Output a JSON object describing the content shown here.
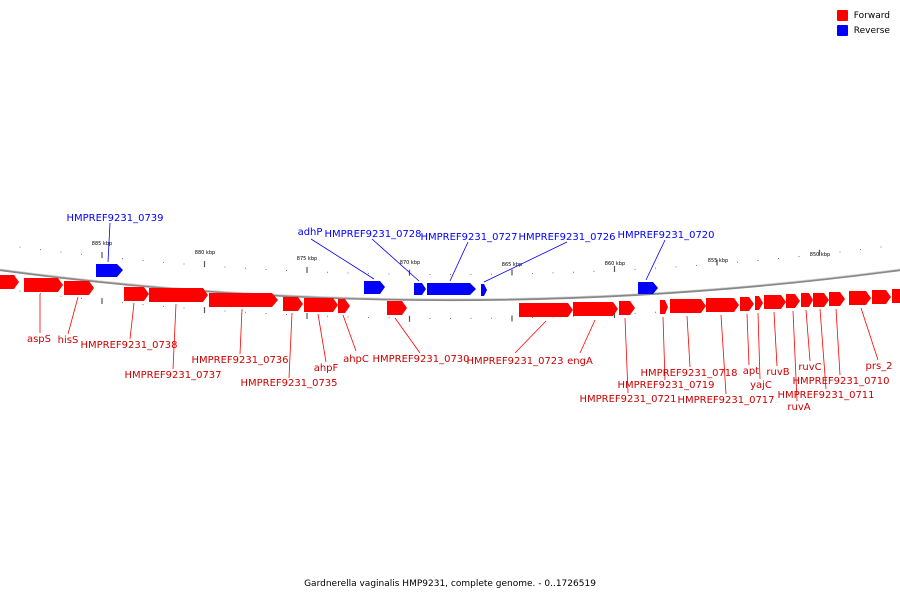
{
  "legend": {
    "items": [
      {
        "label": "Forward",
        "color": "#ff0000"
      },
      {
        "label": "Reverse",
        "color": "#0000ff"
      }
    ]
  },
  "caption": "Gardnerella vaginalis HMP9231, complete genome. - 0..1726519",
  "colors": {
    "forward": "#ff0000",
    "reverse": "#0000ff",
    "backbone": "#888888"
  },
  "scale_labels": [
    "885 kbp",
    "880 kbp",
    "875 kbp",
    "870 kbp",
    "865 kbp",
    "860 kbp",
    "855 kbp",
    "850 kbp"
  ],
  "reverse_genes": [
    {
      "name": "HMPREF9231_0739"
    },
    {
      "name": "adhP"
    },
    {
      "name": "HMPREF9231_0728"
    },
    {
      "name": "HMPREF9231_0727"
    },
    {
      "name": "HMPREF9231_0726"
    },
    {
      "name": "HMPREF9231_0720"
    }
  ],
  "forward_genes": [
    {
      "name": "aspS"
    },
    {
      "name": "hisS"
    },
    {
      "name": "HMPREF9231_0738"
    },
    {
      "name": "HMPREF9231_0737"
    },
    {
      "name": "HMPREF9231_0736"
    },
    {
      "name": "HMPREF9231_0735"
    },
    {
      "name": "ahpF"
    },
    {
      "name": "ahpC"
    },
    {
      "name": "HMPREF9231_0730"
    },
    {
      "name": "HMPREF9231_0723"
    },
    {
      "name": "engA"
    },
    {
      "name": "HMPREF9231_0721"
    },
    {
      "name": "HMPREF9231_0719"
    },
    {
      "name": "HMPREF9231_0718"
    },
    {
      "name": "HMPREF9231_0717"
    },
    {
      "name": "apt"
    },
    {
      "name": "yajC"
    },
    {
      "name": "ruvB"
    },
    {
      "name": "ruvA"
    },
    {
      "name": "ruvC"
    },
    {
      "name": "HMPREF9231_0711"
    },
    {
      "name": "HMPREF9231_0710"
    },
    {
      "name": "prs_2"
    }
  ]
}
